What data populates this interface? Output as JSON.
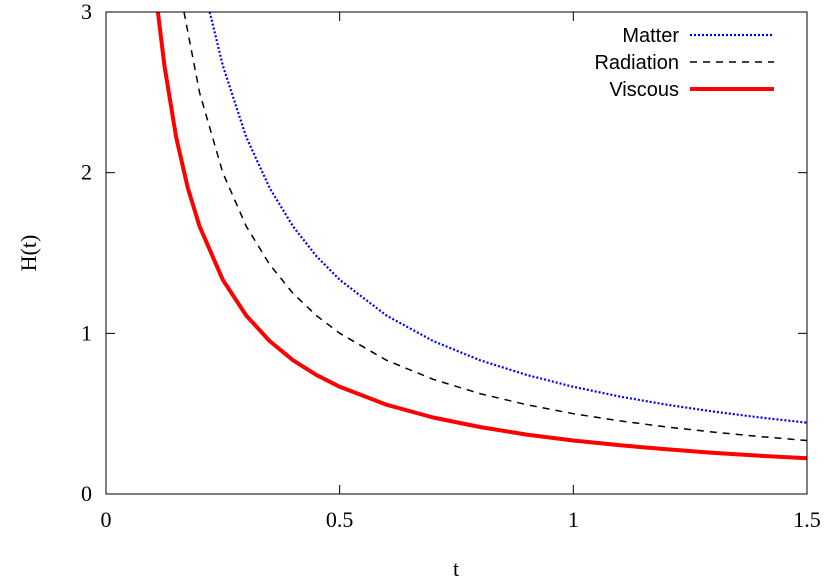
{
  "chart_data": {
    "type": "line",
    "xlabel": "t",
    "ylabel": "H(t)",
    "xlim": [
      0,
      1.5
    ],
    "ylim": [
      0,
      3
    ],
    "xticks": [
      0,
      0.5,
      1,
      1.5
    ],
    "xtick_labels": [
      "0",
      "0.5",
      "1",
      "1.5"
    ],
    "yticks": [
      0,
      1,
      2,
      3
    ],
    "ytick_labels": [
      "0",
      "1",
      "2",
      "3"
    ],
    "grid": false,
    "legend_position": "top-right",
    "series": [
      {
        "name": "Matter",
        "color": "#0000ff",
        "style": "dotted",
        "x": [
          0.222,
          0.25,
          0.3,
          0.35,
          0.4,
          0.45,
          0.5,
          0.6,
          0.7,
          0.8,
          0.9,
          1.0,
          1.1,
          1.2,
          1.3,
          1.4,
          1.5
        ],
        "y": [
          3.0,
          2.667,
          2.222,
          1.905,
          1.667,
          1.481,
          1.333,
          1.111,
          0.952,
          0.833,
          0.741,
          0.667,
          0.606,
          0.556,
          0.513,
          0.476,
          0.444
        ]
      },
      {
        "name": "Radiation",
        "color": "#000000",
        "style": "dashed",
        "x": [
          0.167,
          0.2,
          0.25,
          0.3,
          0.35,
          0.4,
          0.45,
          0.5,
          0.6,
          0.7,
          0.8,
          0.9,
          1.0,
          1.1,
          1.2,
          1.3,
          1.4,
          1.5
        ],
        "y": [
          3.0,
          2.5,
          2.0,
          1.667,
          1.429,
          1.25,
          1.111,
          1.0,
          0.833,
          0.714,
          0.625,
          0.556,
          0.5,
          0.455,
          0.417,
          0.385,
          0.357,
          0.333
        ]
      },
      {
        "name": "Viscous",
        "color": "#ff0000",
        "style": "solid",
        "x": [
          0.111,
          0.125,
          0.15,
          0.175,
          0.2,
          0.25,
          0.3,
          0.35,
          0.4,
          0.45,
          0.5,
          0.6,
          0.7,
          0.8,
          0.9,
          1.0,
          1.1,
          1.2,
          1.3,
          1.4,
          1.5
        ],
        "y": [
          3.0,
          2.667,
          2.222,
          1.905,
          1.667,
          1.333,
          1.111,
          0.952,
          0.833,
          0.741,
          0.667,
          0.556,
          0.476,
          0.417,
          0.37,
          0.333,
          0.303,
          0.278,
          0.256,
          0.238,
          0.222
        ]
      }
    ]
  }
}
